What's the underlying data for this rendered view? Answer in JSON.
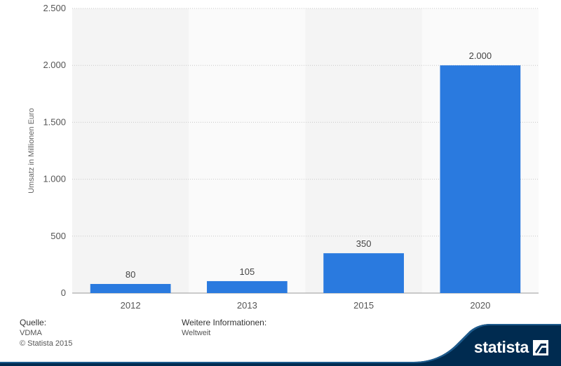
{
  "chart_data": {
    "type": "bar",
    "categories": [
      "2012",
      "2013",
      "2015",
      "2020"
    ],
    "values": [
      80,
      105,
      350,
      2000
    ],
    "data_labels": [
      "80",
      "105",
      "350",
      "2.000"
    ],
    "ylabel": "Umsatz in Millionen Euro",
    "ylim": [
      0,
      2500
    ],
    "yticks": [
      0,
      500,
      1000,
      1500,
      2000,
      2500
    ],
    "ytick_labels": [
      "0",
      "500",
      "1.000",
      "1.500",
      "2.000",
      "2.500"
    ],
    "bar_color": "#2a7adf",
    "band_color": "#f4f4f4",
    "grid": true
  },
  "footer": {
    "source_heading": "Quelle:",
    "source_lines": [
      "VDMA",
      "© Statista 2015"
    ],
    "info_heading": "Weitere Informationen:",
    "info_lines": [
      "Weltweit"
    ]
  },
  "brand": {
    "name": "statista",
    "icon": "statista-logo-icon",
    "color": "#002b50"
  }
}
